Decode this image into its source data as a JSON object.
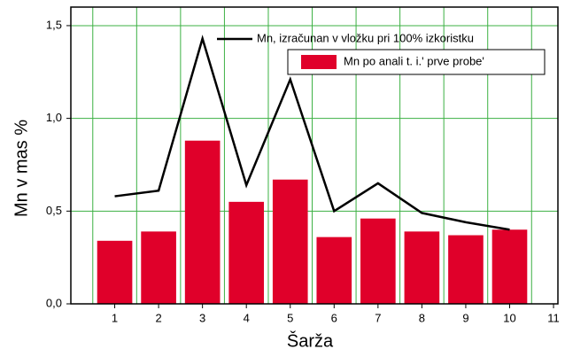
{
  "chart_data": {
    "type": "bar",
    "xlabel": "Šarža",
    "ylabel": "Mn v mas %",
    "x": [
      1,
      2,
      3,
      4,
      5,
      6,
      7,
      8,
      9,
      10
    ],
    "series": [
      {
        "name": "Mn, izračunan v vložku pri 100% izkoristku",
        "type": "line",
        "color": "#000000",
        "values": [
          0.58,
          0.61,
          1.43,
          0.64,
          1.21,
          0.5,
          0.65,
          0.49,
          0.44,
          0.4
        ]
      },
      {
        "name": "Mn po anali t. i.' prve probe'",
        "type": "bar",
        "color": "#e0002a",
        "values": [
          0.34,
          0.39,
          0.88,
          0.55,
          0.67,
          0.36,
          0.46,
          0.39,
          0.37,
          0.4
        ]
      }
    ],
    "xlim": [
      0,
      11.1
    ],
    "xticks": [
      1,
      2,
      3,
      4,
      5,
      6,
      7,
      8,
      9,
      10,
      11
    ],
    "ylim": [
      0,
      1.6
    ],
    "yticks": [
      {
        "value": 0,
        "label": "0,0"
      },
      {
        "value": 0.5,
        "label": "0,5"
      },
      {
        "value": 1,
        "label": "1,0"
      },
      {
        "value": 1.5,
        "label": "1,5"
      }
    ],
    "grid": true,
    "legend": "top-right"
  }
}
